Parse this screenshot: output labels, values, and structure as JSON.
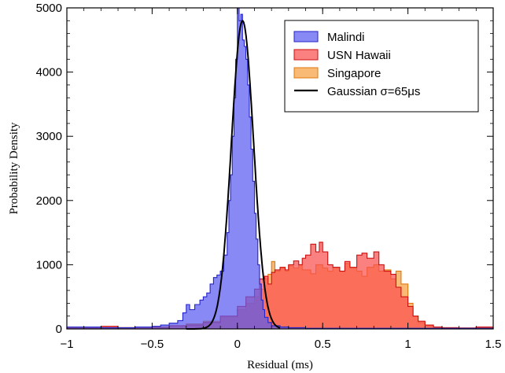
{
  "chart_data": {
    "type": "area",
    "title": "",
    "xlabel": "Residual (ms)",
    "ylabel": "Probability Density",
    "xlim": [
      -1,
      1.5
    ],
    "ylim": [
      0,
      5000
    ],
    "xticks": [
      -1,
      -0.5,
      0,
      0.5,
      1,
      1.5
    ],
    "xtick_labels": [
      "−1",
      "−0.5",
      "0",
      "0.5",
      "1",
      "1.5"
    ],
    "yticks": [
      0,
      1000,
      2000,
      3000,
      4000,
      5000
    ],
    "ytick_labels": [
      "0",
      "1000",
      "2000",
      "3000",
      "4000",
      "5000"
    ],
    "grid": false,
    "legend_position": "top-right",
    "series": [
      {
        "name": "Malindi",
        "kind": "step-histogram",
        "fill": "#5a5cf0",
        "edge": "#2424c8",
        "points": [
          [
            -1.0,
            30
          ],
          [
            -0.8,
            20
          ],
          [
            -0.6,
            30
          ],
          [
            -0.5,
            40
          ],
          [
            -0.45,
            60
          ],
          [
            -0.4,
            90
          ],
          [
            -0.35,
            130
          ],
          [
            -0.32,
            250
          ],
          [
            -0.3,
            380
          ],
          [
            -0.28,
            300
          ],
          [
            -0.25,
            380
          ],
          [
            -0.22,
            450
          ],
          [
            -0.2,
            500
          ],
          [
            -0.18,
            560
          ],
          [
            -0.16,
            700
          ],
          [
            -0.14,
            800
          ],
          [
            -0.12,
            840
          ],
          [
            -0.1,
            900
          ],
          [
            -0.08,
            1150
          ],
          [
            -0.06,
            1500
          ],
          [
            -0.05,
            2000
          ],
          [
            -0.04,
            2400
          ],
          [
            -0.03,
            3000
          ],
          [
            -0.02,
            3600
          ],
          [
            -0.01,
            4200
          ],
          [
            0.0,
            5000
          ],
          [
            0.01,
            4800
          ],
          [
            0.02,
            4900
          ],
          [
            0.03,
            4500
          ],
          [
            0.04,
            4400
          ],
          [
            0.05,
            4200
          ],
          [
            0.06,
            3800
          ],
          [
            0.07,
            3300
          ],
          [
            0.08,
            2800
          ],
          [
            0.09,
            2300
          ],
          [
            0.1,
            1800
          ],
          [
            0.11,
            1400
          ],
          [
            0.12,
            1000
          ],
          [
            0.13,
            700
          ],
          [
            0.14,
            450
          ],
          [
            0.15,
            300
          ],
          [
            0.16,
            180
          ],
          [
            0.18,
            100
          ],
          [
            0.2,
            50
          ],
          [
            0.25,
            30
          ],
          [
            0.3,
            20
          ],
          [
            0.4,
            10
          ],
          [
            0.5,
            10
          ],
          [
            0.6,
            10
          ]
        ]
      },
      {
        "name": "USN Hawaii",
        "kind": "step-histogram",
        "fill": "#fa5050",
        "edge": "#cc1010",
        "points": [
          [
            -1.0,
            10
          ],
          [
            -0.9,
            15
          ],
          [
            -0.8,
            40
          ],
          [
            -0.7,
            20
          ],
          [
            -0.6,
            30
          ],
          [
            -0.5,
            25
          ],
          [
            -0.4,
            50
          ],
          [
            -0.3,
            60
          ],
          [
            -0.2,
            100
          ],
          [
            -0.1,
            200
          ],
          [
            0.0,
            350
          ],
          [
            0.05,
            500
          ],
          [
            0.1,
            620
          ],
          [
            0.13,
            780
          ],
          [
            0.16,
            820
          ],
          [
            0.18,
            700
          ],
          [
            0.2,
            880
          ],
          [
            0.22,
            920
          ],
          [
            0.25,
            960
          ],
          [
            0.28,
            920
          ],
          [
            0.3,
            1000
          ],
          [
            0.33,
            1060
          ],
          [
            0.36,
            1000
          ],
          [
            0.38,
            1100
          ],
          [
            0.4,
            1150
          ],
          [
            0.43,
            1320
          ],
          [
            0.46,
            1200
          ],
          [
            0.48,
            1350
          ],
          [
            0.5,
            1200
          ],
          [
            0.53,
            1000
          ],
          [
            0.56,
            960
          ],
          [
            0.6,
            900
          ],
          [
            0.63,
            1050
          ],
          [
            0.66,
            960
          ],
          [
            0.7,
            1150
          ],
          [
            0.73,
            1180
          ],
          [
            0.76,
            1100
          ],
          [
            0.8,
            1200
          ],
          [
            0.83,
            1000
          ],
          [
            0.86,
            900
          ],
          [
            0.9,
            850
          ],
          [
            0.93,
            650
          ],
          [
            0.96,
            500
          ],
          [
            1.0,
            350
          ],
          [
            1.03,
            200
          ],
          [
            1.06,
            120
          ],
          [
            1.1,
            60
          ],
          [
            1.15,
            30
          ],
          [
            1.2,
            20
          ],
          [
            1.3,
            15
          ],
          [
            1.4,
            30
          ],
          [
            1.5,
            20
          ]
        ]
      },
      {
        "name": "Singapore",
        "kind": "step-histogram",
        "fill": "#f6a040",
        "edge": "#e07810",
        "points": [
          [
            -1.0,
            20
          ],
          [
            -0.9,
            10
          ],
          [
            -0.8,
            20
          ],
          [
            -0.7,
            20
          ],
          [
            -0.6,
            30
          ],
          [
            -0.5,
            30
          ],
          [
            -0.4,
            50
          ],
          [
            -0.3,
            80
          ],
          [
            -0.2,
            120
          ],
          [
            -0.1,
            180
          ],
          [
            0.0,
            300
          ],
          [
            0.05,
            400
          ],
          [
            0.1,
            500
          ],
          [
            0.13,
            620
          ],
          [
            0.16,
            780
          ],
          [
            0.18,
            850
          ],
          [
            0.2,
            1050
          ],
          [
            0.22,
            900
          ],
          [
            0.25,
            950
          ],
          [
            0.28,
            900
          ],
          [
            0.3,
            980
          ],
          [
            0.33,
            950
          ],
          [
            0.36,
            1000
          ],
          [
            0.38,
            920
          ],
          [
            0.4,
            920
          ],
          [
            0.43,
            860
          ],
          [
            0.46,
            1000
          ],
          [
            0.5,
            950
          ],
          [
            0.53,
            900
          ],
          [
            0.56,
            960
          ],
          [
            0.6,
            900
          ],
          [
            0.63,
            1020
          ],
          [
            0.66,
            950
          ],
          [
            0.7,
            900
          ],
          [
            0.73,
            820
          ],
          [
            0.76,
            960
          ],
          [
            0.8,
            1000
          ],
          [
            0.83,
            900
          ],
          [
            0.86,
            920
          ],
          [
            0.9,
            780
          ],
          [
            0.93,
            900
          ],
          [
            0.96,
            700
          ],
          [
            1.0,
            400
          ],
          [
            1.03,
            200
          ],
          [
            1.06,
            100
          ],
          [
            1.1,
            50
          ],
          [
            1.15,
            30
          ],
          [
            1.2,
            20
          ],
          [
            1.3,
            15
          ],
          [
            1.4,
            20
          ],
          [
            1.5,
            10
          ]
        ]
      },
      {
        "name": "Gaussian σ=65μs",
        "kind": "line",
        "color": "#000000",
        "mean": 0.03,
        "sigma": 0.065,
        "peak": 4800,
        "x_range": [
          -0.3,
          0.25
        ]
      }
    ]
  }
}
